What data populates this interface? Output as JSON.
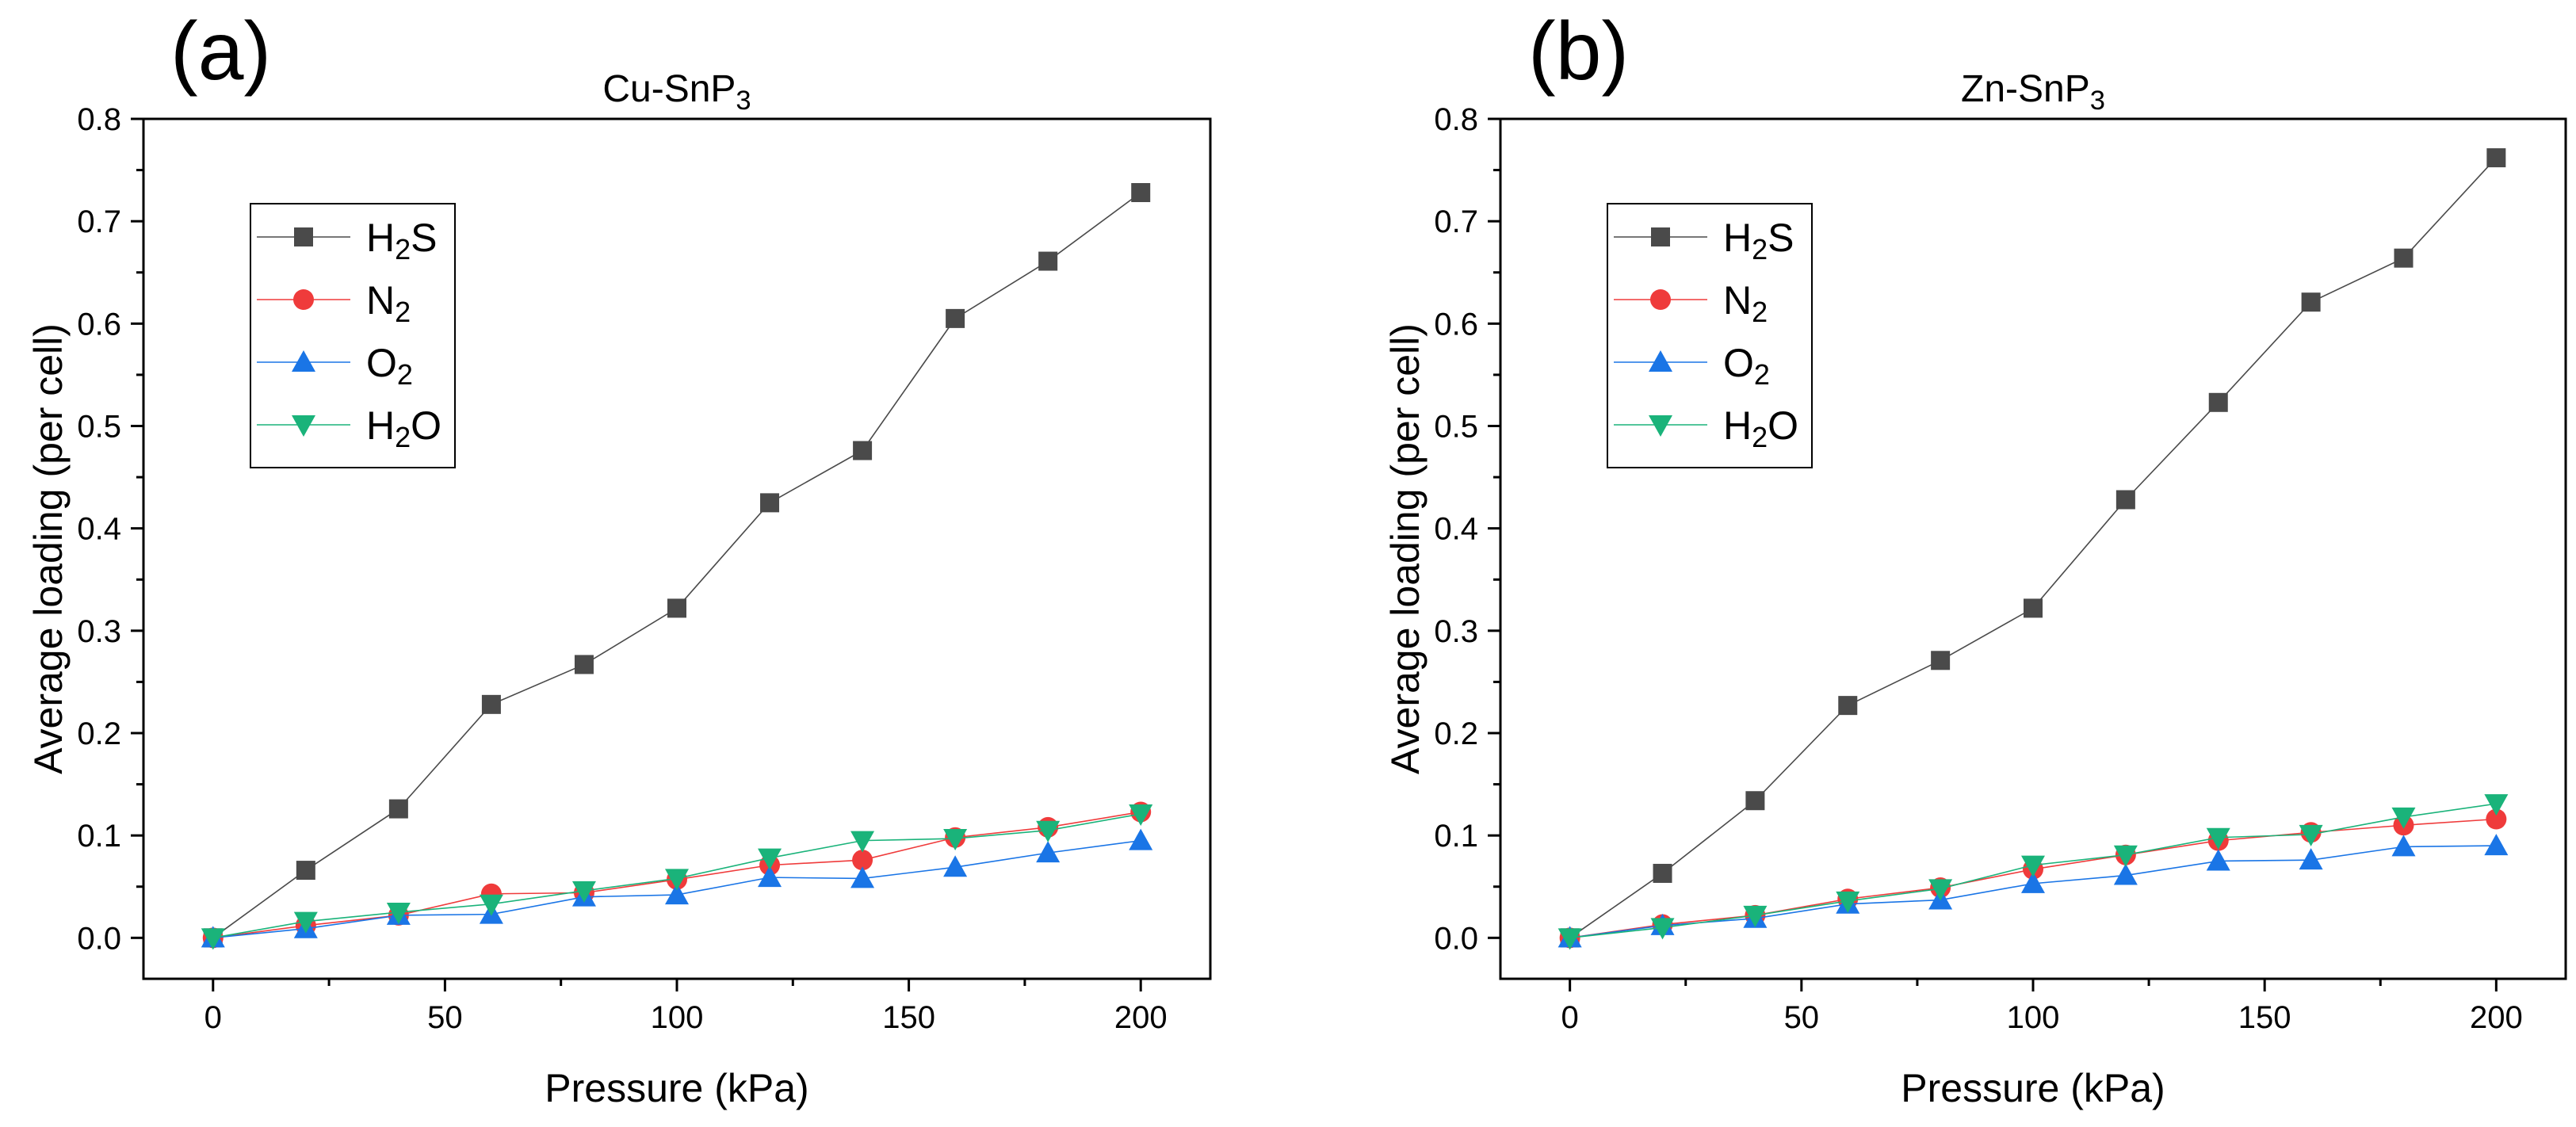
{
  "chart_data": [
    {
      "type": "line",
      "panel": "(a)",
      "title_main": "Cu-SnP",
      "title_sub": "3",
      "xlabel": "Pressure (kPa)",
      "ylabel": "Average loading (per cell)",
      "xlim": [
        -15,
        215
      ],
      "ylim": [
        -0.04,
        0.8
      ],
      "xticks": [
        0,
        50,
        100,
        150,
        200
      ],
      "xtick_labels": [
        "0",
        "50",
        "100",
        "150",
        "200"
      ],
      "yticks": [
        0.0,
        0.1,
        0.2,
        0.3,
        0.4,
        0.5,
        0.6,
        0.7,
        0.8
      ],
      "ytick_labels": [
        "0.0",
        "0.1",
        "0.2",
        "0.3",
        "0.4",
        "0.5",
        "0.6",
        "0.7",
        "0.8"
      ],
      "legend_position": "upper-left",
      "grid": false,
      "x": [
        0,
        20,
        40,
        60,
        80,
        100,
        120,
        140,
        160,
        180,
        200
      ],
      "series": [
        {
          "name": "H2S",
          "label_pre": "H",
          "label_sub": "2",
          "label_post": "S",
          "color": "#4a4a4a",
          "marker": "square",
          "values": [
            0.0,
            0.066,
            0.126,
            0.228,
            0.267,
            0.322,
            0.425,
            0.476,
            0.605,
            0.661,
            0.728
          ]
        },
        {
          "name": "N2",
          "label_pre": "N",
          "label_sub": "2",
          "label_post": "",
          "color": "#ef3b3b",
          "marker": "circle",
          "values": [
            0.0,
            0.012,
            0.022,
            0.043,
            0.044,
            0.057,
            0.071,
            0.076,
            0.098,
            0.108,
            0.123
          ]
        },
        {
          "name": "O2",
          "label_pre": "O",
          "label_sub": "2",
          "label_post": "",
          "color": "#1a75e6",
          "marker": "triangle-up",
          "values": [
            0.0,
            0.009,
            0.022,
            0.023,
            0.04,
            0.042,
            0.059,
            0.058,
            0.069,
            0.083,
            0.095
          ]
        },
        {
          "name": "H2O",
          "label_pre": "H",
          "label_sub": "2",
          "label_post": "O",
          "color": "#1ab37a",
          "marker": "triangle-down",
          "values": [
            0.0,
            0.016,
            0.025,
            0.033,
            0.046,
            0.058,
            0.078,
            0.095,
            0.097,
            0.105,
            0.121
          ]
        }
      ]
    },
    {
      "type": "line",
      "panel": "(b)",
      "title_main": "Zn-SnP",
      "title_sub": "3",
      "xlabel": "Pressure (kPa)",
      "ylabel": "Average loading (per cell)",
      "xlim": [
        -15,
        215
      ],
      "ylim": [
        -0.04,
        0.8
      ],
      "xticks": [
        0,
        50,
        100,
        150,
        200
      ],
      "xtick_labels": [
        "0",
        "50",
        "100",
        "150",
        "200"
      ],
      "yticks": [
        0.0,
        0.1,
        0.2,
        0.3,
        0.4,
        0.5,
        0.6,
        0.7,
        0.8
      ],
      "ytick_labels": [
        "0.0",
        "0.1",
        "0.2",
        "0.3",
        "0.4",
        "0.5",
        "0.6",
        "0.7",
        "0.8"
      ],
      "legend_position": "upper-left",
      "grid": false,
      "x": [
        0,
        20,
        40,
        60,
        80,
        100,
        120,
        140,
        160,
        180,
        200
      ],
      "series": [
        {
          "name": "H2S",
          "label_pre": "H",
          "label_sub": "2",
          "label_post": "S",
          "color": "#4a4a4a",
          "marker": "square",
          "values": [
            0.0,
            0.063,
            0.134,
            0.227,
            0.271,
            0.322,
            0.428,
            0.523,
            0.621,
            0.664,
            0.762
          ]
        },
        {
          "name": "N2",
          "label_pre": "N",
          "label_sub": "2",
          "label_post": "",
          "color": "#ef3b3b",
          "marker": "circle",
          "values": [
            0.0,
            0.013,
            0.022,
            0.038,
            0.049,
            0.067,
            0.081,
            0.095,
            0.103,
            0.11,
            0.116
          ]
        },
        {
          "name": "O2",
          "label_pre": "O",
          "label_sub": "2",
          "label_post": "",
          "color": "#1a75e6",
          "marker": "triangle-up",
          "values": [
            0.0,
            0.012,
            0.019,
            0.033,
            0.037,
            0.053,
            0.061,
            0.075,
            0.076,
            0.089,
            0.09
          ]
        },
        {
          "name": "H2O",
          "label_pre": "H",
          "label_sub": "2",
          "label_post": "O",
          "color": "#1ab37a",
          "marker": "triangle-down",
          "values": [
            0.0,
            0.01,
            0.022,
            0.036,
            0.048,
            0.071,
            0.081,
            0.098,
            0.101,
            0.118,
            0.131
          ]
        }
      ]
    }
  ]
}
